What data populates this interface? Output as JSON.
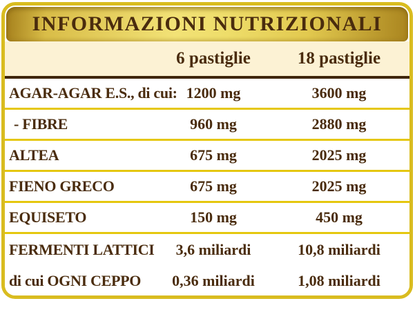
{
  "panel": {
    "title": "INFORMAZIONI NUTRIZIONALI",
    "columns": [
      "6 pastiglie",
      "18 pastiglie"
    ],
    "rows": [
      {
        "label": "AGAR-AGAR E.S., di cui:",
        "v6": "1200 mg",
        "v18": "3600 mg"
      },
      {
        "label": "- FIBRE",
        "v6": "960 mg",
        "v18": "2880 mg"
      },
      {
        "label": "ALTEA",
        "v6": "675 mg",
        "v18": "2025 mg"
      },
      {
        "label": "FIENO GRECO",
        "v6": "675 mg",
        "v18": "2025 mg"
      },
      {
        "label": "EQUISETO",
        "v6": "150 mg",
        "v18": "450 mg"
      },
      {
        "label": "FERMENTI LATTICI",
        "v6": "3,6 miliardi",
        "v18": "10,8 miliardi"
      },
      {
        "label": "di cui OGNI CEPPO",
        "v6": "0,36 miliardi",
        "v18": "1,08 miliardi"
      }
    ],
    "colors": {
      "border_gold": "#d9bc20",
      "separator_gold": "#e5c70f",
      "banner_gold_light": "#f2e276",
      "banner_gold_dark": "#a5801c",
      "cream_background": "#fcf2d4",
      "text_brown": "#4a2c0e",
      "rule_brown": "#3f2708"
    }
  }
}
